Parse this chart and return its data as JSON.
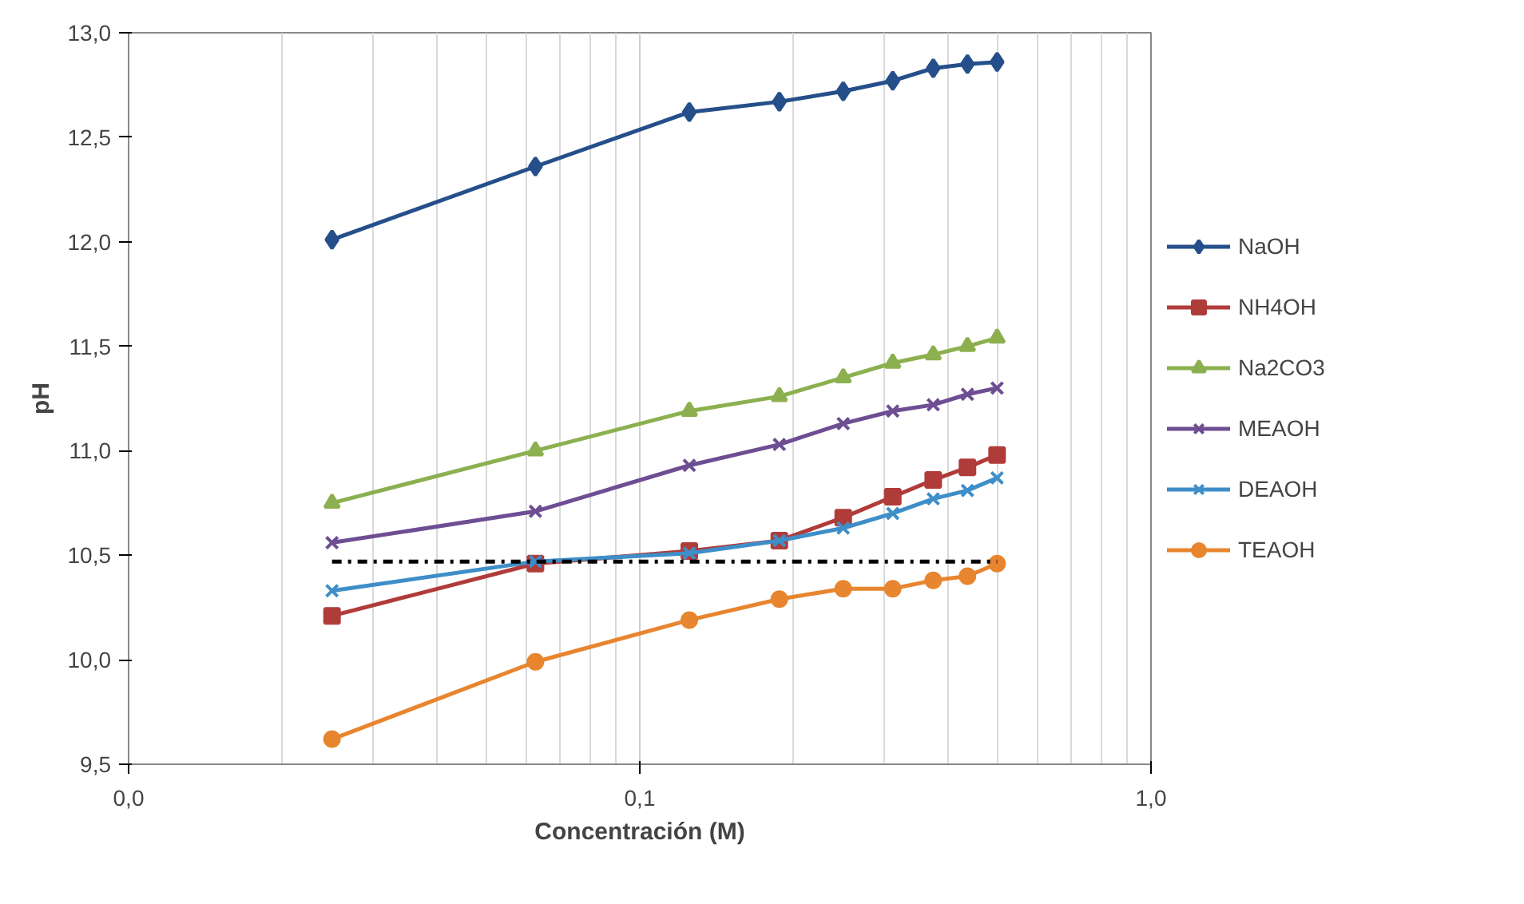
{
  "chart_data": {
    "type": "line",
    "xlabel": "Concentración (M)",
    "ylabel": "pH",
    "log": "x",
    "x": [
      0.025,
      0.0625,
      0.125,
      0.1875,
      0.25,
      0.3125,
      0.375,
      0.4375,
      0.5
    ],
    "xlim": [
      0.01,
      1.0
    ],
    "xticks": [
      {
        "value": 0.01,
        "label": "0,0"
      },
      {
        "value": 0.1,
        "label": "0,1"
      },
      {
        "value": 1.0,
        "label": "1,0"
      }
    ],
    "ylim": [
      9.5,
      13.0
    ],
    "yticks": [
      {
        "value": 9.5,
        "label": "9,5"
      },
      {
        "value": 10.0,
        "label": "10,0"
      },
      {
        "value": 10.5,
        "label": "10,5"
      },
      {
        "value": 11.0,
        "label": "11,0"
      },
      {
        "value": 11.5,
        "label": "11,5"
      },
      {
        "value": 12.0,
        "label": "12,0"
      },
      {
        "value": 12.5,
        "label": "12,5"
      },
      {
        "value": 13.0,
        "label": "13,0"
      }
    ],
    "grid": "x",
    "legend": "right",
    "line_style": "solid",
    "series": [
      {
        "name": "NaOH",
        "color": "#254f8a",
        "marker": "diamond",
        "values": [
          12.01,
          12.36,
          12.62,
          12.67,
          12.72,
          12.77,
          12.83,
          12.85,
          12.86
        ]
      },
      {
        "name": "NH4OH",
        "color": "#b03c3a",
        "marker": "square",
        "values": [
          10.21,
          10.46,
          10.52,
          10.57,
          10.68,
          10.78,
          10.86,
          10.92,
          10.98
        ]
      },
      {
        "name": "Na2CO3",
        "color": "#8cb050",
        "marker": "triangle",
        "values": [
          10.75,
          11.0,
          11.19,
          11.26,
          11.35,
          11.42,
          11.46,
          11.5,
          11.54
        ]
      },
      {
        "name": "MEAOH",
        "color": "#6e4e93",
        "marker": "cross",
        "values": [
          10.56,
          10.71,
          10.93,
          11.03,
          11.13,
          11.19,
          11.22,
          11.27,
          11.3
        ]
      },
      {
        "name": "DEAOH",
        "color": "#3e8ec8",
        "marker": "cross",
        "values": [
          10.33,
          10.47,
          10.51,
          10.57,
          10.63,
          10.7,
          10.77,
          10.81,
          10.87
        ]
      },
      {
        "name": "TEAOH",
        "color": "#e8852f",
        "marker": "circle",
        "values": [
          9.62,
          9.99,
          10.19,
          10.29,
          10.34,
          10.34,
          10.38,
          10.4,
          10.46
        ]
      },
      {
        "color": "#000000",
        "marker": "none",
        "line_style": "dashed",
        "x": [
          0.025,
          0.5
        ],
        "values": [
          10.47,
          10.47
        ]
      }
    ]
  }
}
